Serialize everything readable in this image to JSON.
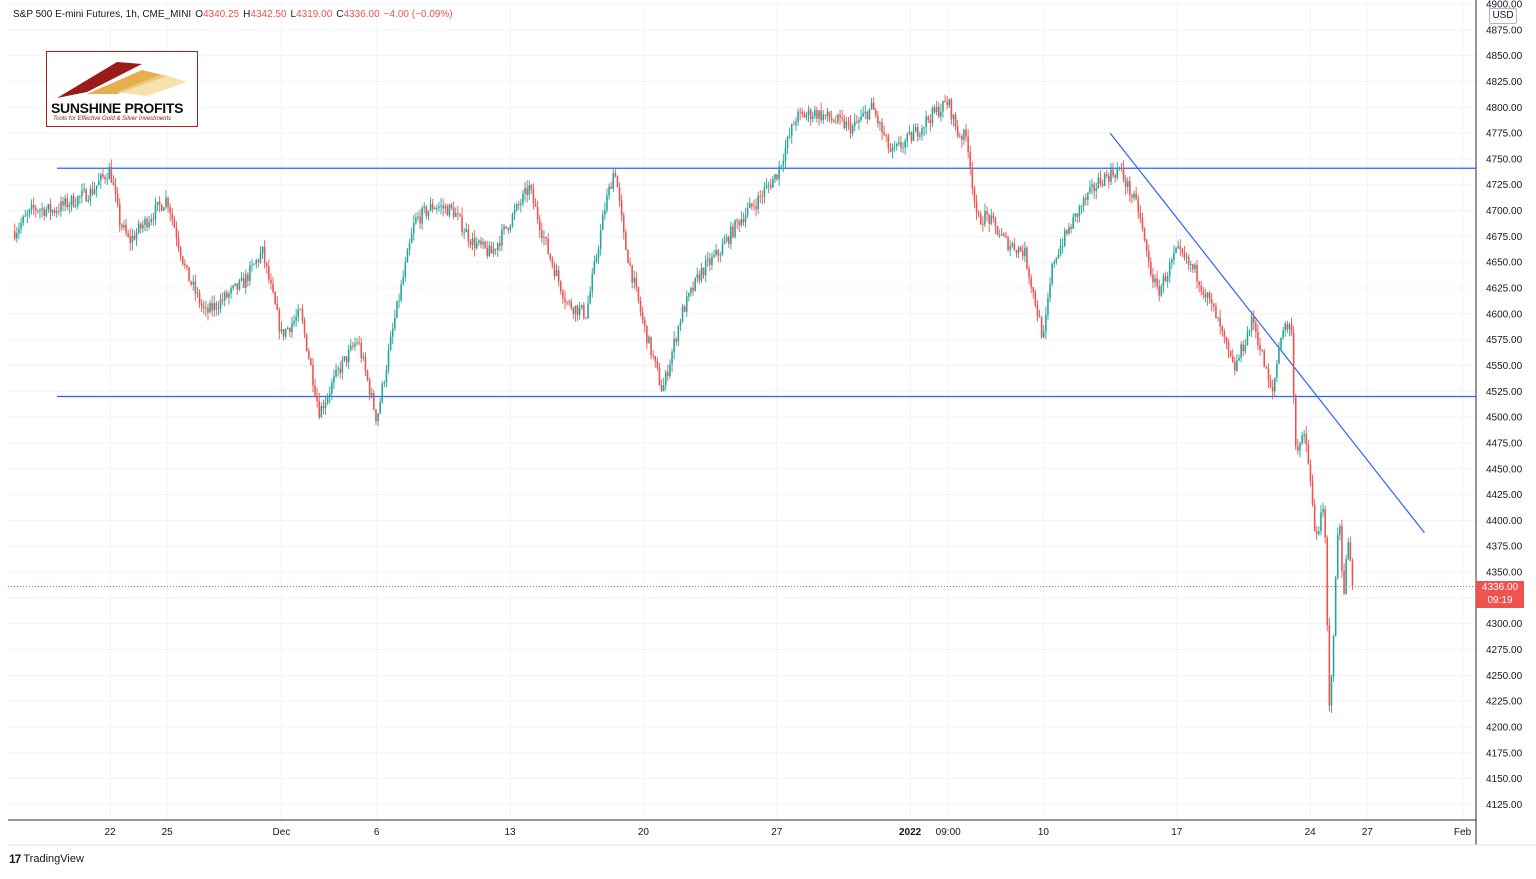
{
  "legend": {
    "symbol": "S&P 500 E-mini Futures, 1h, CME_MINI",
    "open_label": "O",
    "open": "4340.25",
    "high_label": "H",
    "high": "4342.50",
    "low_label": "L",
    "low": "4319.00",
    "close_label": "C",
    "close": "4336.00",
    "change": "−4.00 (−0.09%)"
  },
  "logo": {
    "name": "SUNSHINE PROFITS",
    "tagline": "Tools for Effective Gold & Silver Investments"
  },
  "currency": "USD",
  "last_price": {
    "value": "4336.00",
    "countdown": "09:19"
  },
  "brand": "TradingView",
  "colors": {
    "up": "#26a69a",
    "down": "#ef5350",
    "trendline": "#2962ff",
    "grid": "#f0f3fa",
    "axis_text": "#131722"
  },
  "chart_data": {
    "type": "candlestick",
    "yaxis": {
      "ylim": [
        4107,
        4900
      ],
      "ticks": [
        4900,
        4875,
        4850,
        4825,
        4800,
        4775,
        4750,
        4725,
        4700,
        4675,
        4650,
        4625,
        4600,
        4575,
        4550,
        4525,
        4500,
        4475,
        4450,
        4425,
        4400,
        4375,
        4350,
        4325,
        4300,
        4275,
        4250,
        4225,
        4200,
        4175,
        4150,
        4125
      ],
      "tick_labels": [
        "4900.00",
        "4875.00",
        "4850.00",
        "4825.00",
        "4800.00",
        "4775.00",
        "4750.00",
        "4725.00",
        "4700.00",
        "4675.00",
        "4650.00",
        "4625.00",
        "4600.00",
        "4575.00",
        "4550.00",
        "4525.00",
        "4500.00",
        "4475.00",
        "4450.00",
        "4425.00",
        "4400.00",
        "4375.00",
        "4350.00",
        "4325.00",
        "4300.00",
        "4275.00",
        "4250.00",
        "4225.00",
        "4200.00",
        "4175.00",
        "4150.00",
        "4125.00"
      ]
    },
    "xaxis": {
      "tick_labels": [
        "22",
        "25",
        "Dec",
        "6",
        "13",
        "20",
        "27",
        "2022",
        "09:00",
        "10",
        "17",
        "24",
        "27",
        "Feb"
      ],
      "tick_dates": [
        "2021-11-22",
        "2021-11-25",
        "2021-12-01",
        "2021-12-06",
        "2021-12-13",
        "2021-12-20",
        "2021-12-27",
        "2022-01-03",
        "2022-01-05",
        "2022-01-10",
        "2022-01-17",
        "2022-01-24",
        "2022-01-27",
        "2022-02-01"
      ],
      "bold_labels": [
        "2022"
      ]
    },
    "price_path": [
      [
        "2021-11-17",
        4680
      ],
      [
        "2021-11-18",
        4702
      ],
      [
        "2021-11-19",
        4700
      ],
      [
        "2021-11-21",
        4718
      ],
      [
        "2021-11-22",
        4740
      ],
      [
        "2021-11-22 12:00",
        4690
      ],
      [
        "2021-11-23",
        4670
      ],
      [
        "2021-11-24",
        4692
      ],
      [
        "2021-11-25",
        4712
      ],
      [
        "2021-11-26",
        4640
      ],
      [
        "2021-11-27",
        4600
      ],
      [
        "2021-11-29",
        4630
      ],
      [
        "2021-11-30",
        4660
      ],
      [
        "2021-12-01",
        4580
      ],
      [
        "2021-12-02",
        4600
      ],
      [
        "2021-12-03",
        4505
      ],
      [
        "2021-12-04",
        4545
      ],
      [
        "2021-12-05",
        4575
      ],
      [
        "2021-12-06",
        4498
      ],
      [
        "2021-12-07",
        4600
      ],
      [
        "2021-12-08",
        4690
      ],
      [
        "2021-12-09",
        4705
      ],
      [
        "2021-12-10",
        4700
      ],
      [
        "2021-12-11",
        4670
      ],
      [
        "2021-12-12",
        4658
      ],
      [
        "2021-12-13",
        4690
      ],
      [
        "2021-12-14",
        4722
      ],
      [
        "2021-12-15",
        4660
      ],
      [
        "2021-12-16",
        4610
      ],
      [
        "2021-12-17",
        4600
      ],
      [
        "2021-12-18",
        4705
      ],
      [
        "2021-12-18 12:00",
        4742
      ],
      [
        "2021-12-19",
        4670
      ],
      [
        "2021-12-20",
        4590
      ],
      [
        "2021-12-21",
        4525
      ],
      [
        "2021-12-22",
        4600
      ],
      [
        "2021-12-23",
        4640
      ],
      [
        "2021-12-24",
        4660
      ],
      [
        "2021-12-25",
        4690
      ],
      [
        "2021-12-26",
        4710
      ],
      [
        "2021-12-27",
        4735
      ],
      [
        "2021-12-28",
        4790
      ],
      [
        "2021-12-29",
        4795
      ],
      [
        "2021-12-31",
        4780
      ],
      [
        "2022-01-01",
        4800
      ],
      [
        "2022-01-02",
        4755
      ],
      [
        "2022-01-03",
        4770
      ],
      [
        "2022-01-04",
        4790
      ],
      [
        "2022-01-05",
        4805
      ],
      [
        "2022-01-05 12:00",
        4775
      ],
      [
        "2022-01-06",
        4770
      ],
      [
        "2022-01-06 12:00",
        4690
      ],
      [
        "2022-01-07",
        4695
      ],
      [
        "2022-01-08",
        4670
      ],
      [
        "2022-01-09",
        4660
      ],
      [
        "2022-01-10",
        4575
      ],
      [
        "2022-01-10 12:00",
        4650
      ],
      [
        "2022-01-11",
        4670
      ],
      [
        "2022-01-12",
        4705
      ],
      [
        "2022-01-13",
        4730
      ],
      [
        "2022-01-14",
        4740
      ],
      [
        "2022-01-15",
        4700
      ],
      [
        "2022-01-15 12:00",
        4650
      ],
      [
        "2022-01-16",
        4620
      ],
      [
        "2022-01-17",
        4660
      ],
      [
        "2022-01-18",
        4640
      ],
      [
        "2022-01-19",
        4600
      ],
      [
        "2022-01-20",
        4545
      ],
      [
        "2022-01-21",
        4595
      ],
      [
        "2022-01-22",
        4520
      ],
      [
        "2022-01-22 12:00",
        4585
      ],
      [
        "2022-01-23",
        4590
      ],
      [
        "2022-01-23 06:00",
        4470
      ],
      [
        "2022-01-23 18:00",
        4480
      ],
      [
        "2022-01-24",
        4440
      ],
      [
        "2022-01-24 06:00",
        4385
      ],
      [
        "2022-01-24 18:00",
        4410
      ],
      [
        "2022-01-25",
        4215
      ],
      [
        "2022-01-25 06:00",
        4300
      ],
      [
        "2022-01-25 12:00",
        4410
      ],
      [
        "2022-01-25 18:00",
        4330
      ],
      [
        "2022-01-26",
        4380
      ],
      [
        "2022-01-26 06:00",
        4336
      ]
    ],
    "last_price": 4336.0,
    "horizontal_lines": [
      4741,
      4520
    ],
    "trendline": {
      "from": [
        "2022-01-13 12:00",
        4775
      ],
      "to": [
        "2022-01-30",
        4388
      ]
    }
  }
}
